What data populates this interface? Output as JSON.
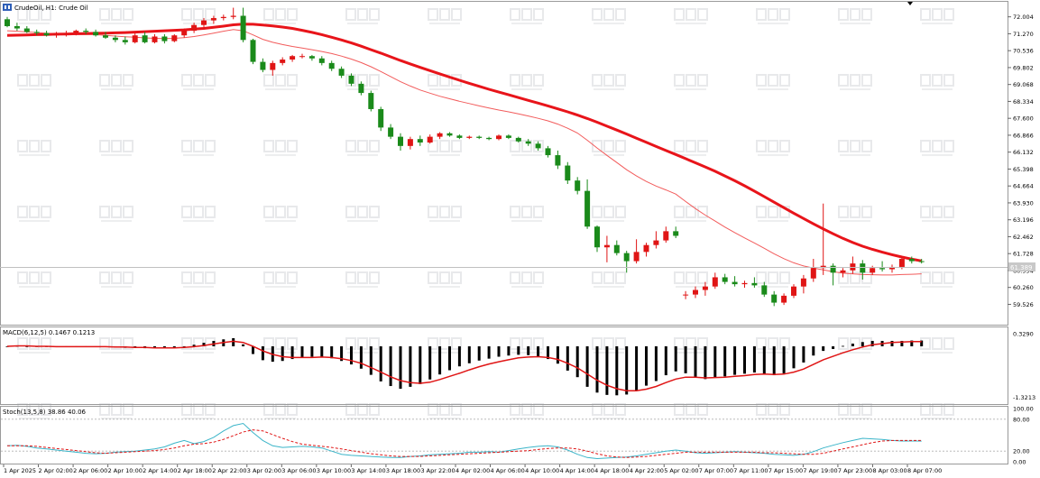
{
  "header": {
    "main": "CrudeOil, H1:  Crude Oil",
    "macd": "MACD(6,12,5) 0.1467 0.1213",
    "stoch": "Stoch(13,5,8) 38.86 40.06"
  },
  "price_label": "61.389",
  "chart_data": [
    {
      "type": "candlestick",
      "title": "CrudeOil, H1:  Crude Oil",
      "ylim": [
        58.8,
        72.5
      ],
      "y_ticks": [
        "72.004",
        "71.270",
        "70.536",
        "69.802",
        "69.068",
        "68.334",
        "67.600",
        "66.866",
        "66.132",
        "65.398",
        "64.664",
        "63.930",
        "63.196",
        "62.462",
        "61.728",
        "60.994",
        "60.260",
        "59.526"
      ],
      "current_price": 61.389,
      "x_labels": [
        "1 Apr 2025",
        "2 Apr 02:00",
        "2 Apr 06:00",
        "2 Apr 10:00",
        "2 Apr 14:00",
        "2 Apr 18:00",
        "2 Apr 22:00",
        "3 Apr 02:00",
        "3 Apr 06:00",
        "3 Apr 10:00",
        "3 Apr 14:00",
        "3 Apr 18:00",
        "3 Apr 22:00",
        "4 Apr 02:00",
        "4 Apr 06:00",
        "4 Apr 10:00",
        "4 Apr 14:00",
        "4 Apr 18:00",
        "4 Apr 22:00",
        "5 Apr 02:00",
        "7 Apr 07:00",
        "7 Apr 11:00",
        "7 Apr 15:00",
        "7 Apr 19:00",
        "7 Apr 23:00",
        "8 Apr 03:00",
        "8 Apr 07:00"
      ],
      "ohlc": [
        [
          71.9,
          72.0,
          71.55,
          71.6
        ],
        [
          71.6,
          71.75,
          71.4,
          71.5
        ],
        [
          71.5,
          71.6,
          71.3,
          71.35
        ],
        [
          71.35,
          71.45,
          71.2,
          71.3
        ],
        [
          71.3,
          71.4,
          71.15,
          71.2
        ],
        [
          71.2,
          71.35,
          71.1,
          71.25
        ],
        [
          71.25,
          71.4,
          71.15,
          71.3
        ],
        [
          71.3,
          71.45,
          71.2,
          71.4
        ],
        [
          71.4,
          71.5,
          71.25,
          71.35
        ],
        [
          71.35,
          71.45,
          71.15,
          71.2
        ],
        [
          71.2,
          71.35,
          71.05,
          71.1
        ],
        [
          71.1,
          71.2,
          70.9,
          71.0
        ],
        [
          71.0,
          71.15,
          70.8,
          70.9
        ],
        [
          70.9,
          71.3,
          70.85,
          71.2
        ],
        [
          71.2,
          71.35,
          70.85,
          70.9
        ],
        [
          70.9,
          71.25,
          70.85,
          71.15
        ],
        [
          71.15,
          71.25,
          70.85,
          70.95
        ],
        [
          70.95,
          71.25,
          70.9,
          71.2
        ],
        [
          71.2,
          71.5,
          71.1,
          71.4
        ],
        [
          71.4,
          71.75,
          71.3,
          71.65
        ],
        [
          71.65,
          71.95,
          71.5,
          71.85
        ],
        [
          71.85,
          72.05,
          71.7,
          71.95
        ],
        [
          71.95,
          72.1,
          71.85,
          72.0
        ],
        [
          72.0,
          72.4,
          71.9,
          72.05
        ],
        [
          72.05,
          72.4,
          70.9,
          71.0
        ],
        [
          71.0,
          71.05,
          69.95,
          70.05
        ],
        [
          70.05,
          70.2,
          69.6,
          69.7
        ],
        [
          69.7,
          70.1,
          69.45,
          70.0
        ],
        [
          70.0,
          70.25,
          69.9,
          70.15
        ],
        [
          70.15,
          70.35,
          70.05,
          70.3
        ],
        [
          70.3,
          70.4,
          70.2,
          70.3
        ],
        [
          70.3,
          70.35,
          70.1,
          70.2
        ],
        [
          70.2,
          70.3,
          69.9,
          70.0
        ],
        [
          70.0,
          70.1,
          69.65,
          69.75
        ],
        [
          69.75,
          69.85,
          69.35,
          69.45
        ],
        [
          69.45,
          69.55,
          69.0,
          69.1
        ],
        [
          69.1,
          69.2,
          68.6,
          68.7
        ],
        [
          68.7,
          68.8,
          67.9,
          68.0
        ],
        [
          68.0,
          68.1,
          67.05,
          67.2
        ],
        [
          67.2,
          67.35,
          66.7,
          66.8
        ],
        [
          66.8,
          66.95,
          66.2,
          66.4
        ],
        [
          66.4,
          66.8,
          66.25,
          66.7
        ],
        [
          66.7,
          66.85,
          66.4,
          66.55
        ],
        [
          66.55,
          66.9,
          66.5,
          66.8
        ],
        [
          66.8,
          67.0,
          66.7,
          66.95
        ],
        [
          66.95,
          67.0,
          66.8,
          66.85
        ],
        [
          66.85,
          66.9,
          66.7,
          66.75
        ],
        [
          66.75,
          66.85,
          66.7,
          66.8
        ],
        [
          66.8,
          66.85,
          66.7,
          66.75
        ],
        [
          66.75,
          66.8,
          66.65,
          66.7
        ],
        [
          66.7,
          66.9,
          66.65,
          66.85
        ],
        [
          66.85,
          66.9,
          66.7,
          66.75
        ],
        [
          66.75,
          66.8,
          66.55,
          66.6
        ],
        [
          66.6,
          66.7,
          66.4,
          66.5
        ],
        [
          66.5,
          66.6,
          66.2,
          66.3
        ],
        [
          66.3,
          66.4,
          65.9,
          66.0
        ],
        [
          66.0,
          66.2,
          65.4,
          65.55
        ],
        [
          65.55,
          65.7,
          64.75,
          64.9
        ],
        [
          64.9,
          65.05,
          64.3,
          64.45
        ],
        [
          64.45,
          64.95,
          62.8,
          62.9
        ],
        [
          62.9,
          62.95,
          61.8,
          62.0
        ],
        [
          62.0,
          62.5,
          61.35,
          62.1
        ],
        [
          62.1,
          62.3,
          61.65,
          61.75
        ],
        [
          61.75,
          61.85,
          60.9,
          61.4
        ],
        [
          61.4,
          62.35,
          61.3,
          61.8
        ],
        [
          61.8,
          62.2,
          61.6,
          62.1
        ],
        [
          62.1,
          62.7,
          61.95,
          62.3
        ],
        [
          62.3,
          62.9,
          62.2,
          62.7
        ],
        [
          62.7,
          62.9,
          62.4,
          62.5
        ],
        [
          59.95,
          60.1,
          59.75,
          59.95
        ],
        [
          59.95,
          60.3,
          59.8,
          60.15
        ],
        [
          60.15,
          60.5,
          59.9,
          60.3
        ],
        [
          60.3,
          60.9,
          60.2,
          60.7
        ],
        [
          60.7,
          60.85,
          60.4,
          60.5
        ],
        [
          60.5,
          60.75,
          60.3,
          60.4
        ],
        [
          60.4,
          60.55,
          60.25,
          60.45
        ],
        [
          60.45,
          60.7,
          60.25,
          60.35
        ],
        [
          60.35,
          60.5,
          59.85,
          59.95
        ],
        [
          59.95,
          60.1,
          59.45,
          59.6
        ],
        [
          59.6,
          60.0,
          59.5,
          59.9
        ],
        [
          59.9,
          60.4,
          59.8,
          60.3
        ],
        [
          60.3,
          60.8,
          60.0,
          60.65
        ],
        [
          60.65,
          61.5,
          60.5,
          61.1
        ],
        [
          61.1,
          63.9,
          60.8,
          61.2
        ],
        [
          61.2,
          61.3,
          60.35,
          60.9
        ],
        [
          60.9,
          61.1,
          60.7,
          61.0
        ],
        [
          61.0,
          61.6,
          60.85,
          61.3
        ],
        [
          61.3,
          61.45,
          60.6,
          60.9
        ],
        [
          60.9,
          61.2,
          60.8,
          61.1
        ],
        [
          61.1,
          61.4,
          60.95,
          61.05
        ],
        [
          61.05,
          61.25,
          60.9,
          61.15
        ],
        [
          61.15,
          61.6,
          61.05,
          61.5
        ],
        [
          61.5,
          61.6,
          61.3,
          61.4
        ],
        [
          61.4,
          61.5,
          61.3,
          61.39
        ]
      ],
      "ma_fast": [
        71.4,
        71.38,
        71.35,
        71.32,
        71.29,
        71.26,
        71.25,
        71.24,
        71.24,
        71.23,
        71.2,
        71.17,
        71.14,
        71.12,
        71.09,
        71.07,
        71.06,
        71.07,
        71.1,
        71.15,
        71.22,
        71.3,
        71.38,
        71.45,
        71.4,
        71.22,
        71.03,
        70.9,
        70.8,
        70.72,
        70.65,
        70.58,
        70.5,
        70.41,
        70.3,
        70.17,
        70.02,
        69.84,
        69.63,
        69.41,
        69.19,
        69.0,
        68.83,
        68.69,
        68.56,
        68.45,
        68.34,
        68.24,
        68.14,
        68.05,
        67.96,
        67.88,
        67.79,
        67.7,
        67.6,
        67.49,
        67.35,
        67.17,
        66.96,
        66.65,
        66.31,
        65.99,
        65.68,
        65.37,
        65.1,
        64.86,
        64.66,
        64.49,
        64.31,
        63.99,
        63.68,
        63.4,
        63.14,
        62.88,
        62.64,
        62.41,
        62.19,
        61.96,
        61.72,
        61.51,
        61.33,
        61.19,
        61.1,
        61.02,
        60.94,
        60.88,
        60.85,
        60.82,
        60.81,
        60.8,
        60.8,
        60.82,
        60.83,
        60.85
      ],
      "ma_slow": [
        71.2,
        71.21,
        71.22,
        71.23,
        71.24,
        71.25,
        71.26,
        71.27,
        71.28,
        71.29,
        71.3,
        71.31,
        71.32,
        71.34,
        71.36,
        71.38,
        71.4,
        71.42,
        71.44,
        71.47,
        71.5,
        71.55,
        71.6,
        71.66,
        71.69,
        71.68,
        71.65,
        71.61,
        71.56,
        71.5,
        71.42,
        71.33,
        71.23,
        71.12,
        71.0,
        70.87,
        70.73,
        70.58,
        70.43,
        70.27,
        70.11,
        69.96,
        69.81,
        69.67,
        69.53,
        69.39,
        69.25,
        69.12,
        68.99,
        68.86,
        68.74,
        68.62,
        68.5,
        68.38,
        68.26,
        68.14,
        68.01,
        67.88,
        67.74,
        67.59,
        67.43,
        67.26,
        67.09,
        66.92,
        66.74,
        66.56,
        66.38,
        66.2,
        66.03,
        65.85,
        65.67,
        65.49,
        65.3,
        65.1,
        64.89,
        64.67,
        64.44,
        64.2,
        63.96,
        63.72,
        63.48,
        63.25,
        63.02,
        62.8,
        62.59,
        62.39,
        62.21,
        62.05,
        61.91,
        61.79,
        61.68,
        61.58,
        61.49,
        61.41
      ]
    },
    {
      "type": "bar",
      "title": "MACD(6,12,5) 0.1467 0.1213",
      "ylim": [
        -1.45,
        0.42
      ],
      "y_ticks": [
        "0.3290",
        "-1.3213"
      ],
      "histogram": [
        0.0,
        0.01,
        0.0,
        -0.01,
        -0.01,
        -0.02,
        -0.01,
        -0.01,
        0.0,
        -0.01,
        -0.02,
        -0.03,
        -0.04,
        -0.03,
        -0.05,
        -0.04,
        -0.05,
        -0.03,
        0.0,
        0.04,
        0.09,
        0.14,
        0.18,
        0.21,
        0.05,
        -0.2,
        -0.36,
        -0.4,
        -0.38,
        -0.33,
        -0.29,
        -0.27,
        -0.27,
        -0.31,
        -0.38,
        -0.47,
        -0.58,
        -0.74,
        -0.91,
        -1.03,
        -1.1,
        -1.05,
        -0.98,
        -0.86,
        -0.73,
        -0.62,
        -0.52,
        -0.44,
        -0.37,
        -0.32,
        -0.27,
        -0.24,
        -0.22,
        -0.23,
        -0.26,
        -0.33,
        -0.45,
        -0.63,
        -0.8,
        -1.05,
        -1.2,
        -1.26,
        -1.27,
        -1.25,
        -1.15,
        -1.02,
        -0.9,
        -0.75,
        -0.65,
        -0.7,
        -0.8,
        -0.85,
        -0.81,
        -0.78,
        -0.74,
        -0.71,
        -0.68,
        -0.72,
        -0.75,
        -0.7,
        -0.57,
        -0.42,
        -0.24,
        -0.12,
        -0.07,
        0.01,
        0.07,
        0.11,
        0.14,
        0.14,
        0.14,
        0.14,
        0.15,
        0.15
      ],
      "signal": [
        0.0,
        0.01,
        0.01,
        0.0,
        0.0,
        -0.01,
        -0.01,
        -0.01,
        -0.01,
        -0.01,
        -0.01,
        -0.02,
        -0.02,
        -0.03,
        -0.03,
        -0.04,
        -0.04,
        -0.04,
        -0.03,
        -0.01,
        0.02,
        0.06,
        0.1,
        0.13,
        0.1,
        0.0,
        -0.12,
        -0.21,
        -0.27,
        -0.29,
        -0.29,
        -0.29,
        -0.28,
        -0.29,
        -0.32,
        -0.37,
        -0.44,
        -0.55,
        -0.67,
        -0.79,
        -0.89,
        -0.94,
        -0.96,
        -0.93,
        -0.86,
        -0.78,
        -0.7,
        -0.61,
        -0.53,
        -0.46,
        -0.4,
        -0.35,
        -0.3,
        -0.28,
        -0.27,
        -0.29,
        -0.34,
        -0.44,
        -0.56,
        -0.72,
        -0.88,
        -1.01,
        -1.1,
        -1.15,
        -1.15,
        -1.11,
        -1.04,
        -0.94,
        -0.85,
        -0.8,
        -0.8,
        -0.82,
        -0.81,
        -0.8,
        -0.78,
        -0.76,
        -0.73,
        -0.72,
        -0.73,
        -0.72,
        -0.67,
        -0.59,
        -0.47,
        -0.35,
        -0.26,
        -0.17,
        -0.09,
        -0.02,
        0.04,
        0.07,
        0.1,
        0.11,
        0.12,
        0.12
      ]
    },
    {
      "type": "line",
      "title": "Stoch(13,5,8) 38.86 40.06",
      "ylim": [
        0,
        100
      ],
      "y_ticks": [
        "100.00",
        "80.00",
        "20.00",
        "0.00"
      ],
      "main": [
        30,
        31,
        29,
        26,
        24,
        22,
        20,
        18,
        16,
        15,
        16,
        18,
        19,
        20,
        22,
        24,
        28,
        35,
        40,
        34,
        38,
        46,
        58,
        68,
        72,
        55,
        40,
        30,
        27,
        28,
        29,
        28,
        26,
        20,
        14,
        12,
        11,
        10,
        9,
        8,
        8,
        10,
        11,
        13,
        14,
        15,
        16,
        18,
        18,
        19,
        18,
        21,
        24,
        27,
        29,
        30,
        28,
        22,
        14,
        8,
        6,
        7,
        8,
        9,
        11,
        14,
        17,
        20,
        22,
        20,
        17,
        16,
        17,
        18,
        19,
        18,
        17,
        16,
        14,
        13,
        12,
        14,
        19,
        26,
        31,
        36,
        40,
        44,
        43,
        42,
        40,
        39,
        38.9,
        38.86
      ],
      "signal": [
        30,
        30,
        30,
        29,
        27,
        25,
        23,
        21,
        19,
        17,
        16,
        17,
        18,
        19,
        20,
        21,
        23,
        26,
        30,
        33,
        34,
        37,
        42,
        49,
        56,
        60,
        58,
        51,
        44,
        38,
        33,
        31,
        29,
        27,
        24,
        21,
        18,
        15,
        13,
        11,
        10,
        10,
        10,
        11,
        12,
        13,
        14,
        15,
        16,
        17,
        18,
        19,
        20,
        21,
        23,
        25,
        26,
        26,
        24,
        20,
        15,
        11,
        9,
        8,
        9,
        10,
        12,
        14,
        16,
        18,
        18,
        18,
        18,
        18,
        18,
        18,
        18,
        17,
        17,
        16,
        15,
        14,
        14,
        16,
        20,
        24,
        28,
        32,
        36,
        39,
        40,
        40,
        40,
        40.06
      ]
    }
  ]
}
